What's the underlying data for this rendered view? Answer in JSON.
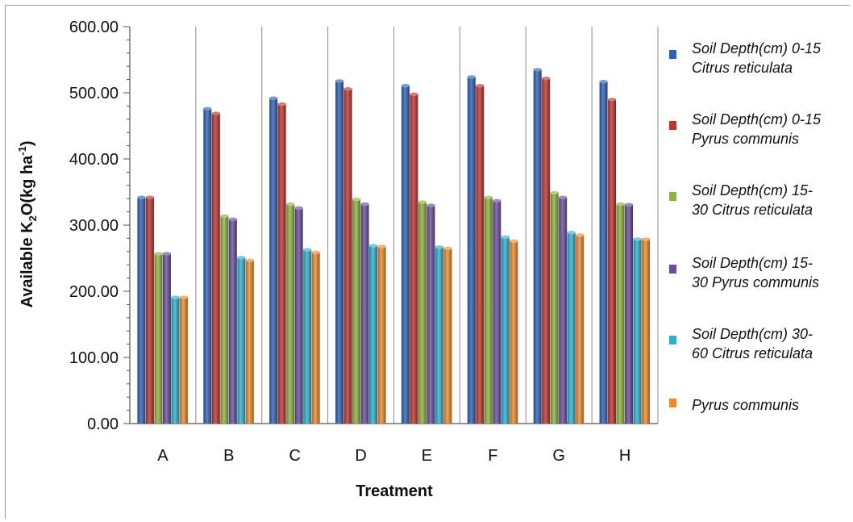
{
  "chart_data": {
    "type": "bar",
    "xlabel": "Treatment",
    "ylabel_parts": [
      "Available K",
      "2",
      "O(kg ha",
      "-1",
      ")"
    ],
    "ylim": [
      0,
      600
    ],
    "yticks": [
      "0.00",
      "100.00",
      "200.00",
      "300.00",
      "400.00",
      "500.00",
      "600.00"
    ],
    "minor_step": 20,
    "grid": "vertical",
    "legend_position": "right",
    "categories": [
      "A",
      "B",
      "C",
      "D",
      "E",
      "F",
      "G",
      "H"
    ],
    "series": [
      {
        "name": "Soil Depth(cm) 0-15 Citrus reticulata",
        "color": "#2f62b4",
        "values": [
          343,
          477,
          493,
          519,
          512,
          525,
          536,
          518
        ]
      },
      {
        "name": "Soil Depth(cm) 0-15 Pyrus communis",
        "color": "#bf3530",
        "values": [
          343,
          470,
          484,
          507,
          499,
          512,
          523,
          491
        ]
      },
      {
        "name": "Soil Depth(cm) 15-30 Citrus reticulata",
        "color": "#8ab43e",
        "values": [
          258,
          315,
          333,
          340,
          336,
          343,
          350,
          333
        ]
      },
      {
        "name": "Soil Depth(cm) 15-30 Pyrus communis",
        "color": "#6a4d9e",
        "values": [
          258,
          310,
          327,
          333,
          331,
          338,
          343,
          332
        ]
      },
      {
        "name": "Soil Depth(cm) 30-60 Citrus reticulata",
        "color": "#2fb0cc",
        "values": [
          192,
          252,
          264,
          270,
          268,
          283,
          290,
          280
        ]
      },
      {
        "name": "Pyrus communis",
        "color": "#ee8a2a",
        "values": [
          192,
          248,
          260,
          269,
          266,
          277,
          286,
          280
        ]
      }
    ]
  },
  "legend_lines": [
    [
      "Soil Depth(cm) 0-15",
      "Citrus reticulata"
    ],
    [
      "Soil Depth(cm) 0-15",
      "Pyrus communis"
    ],
    [
      "Soil Depth(cm) 15-",
      "30 Citrus reticulata"
    ],
    [
      "Soil Depth(cm) 15-",
      "30 Pyrus communis"
    ],
    [
      "Soil Depth(cm) 30-",
      "60 Citrus reticulata"
    ],
    [
      "Pyrus communis"
    ]
  ]
}
